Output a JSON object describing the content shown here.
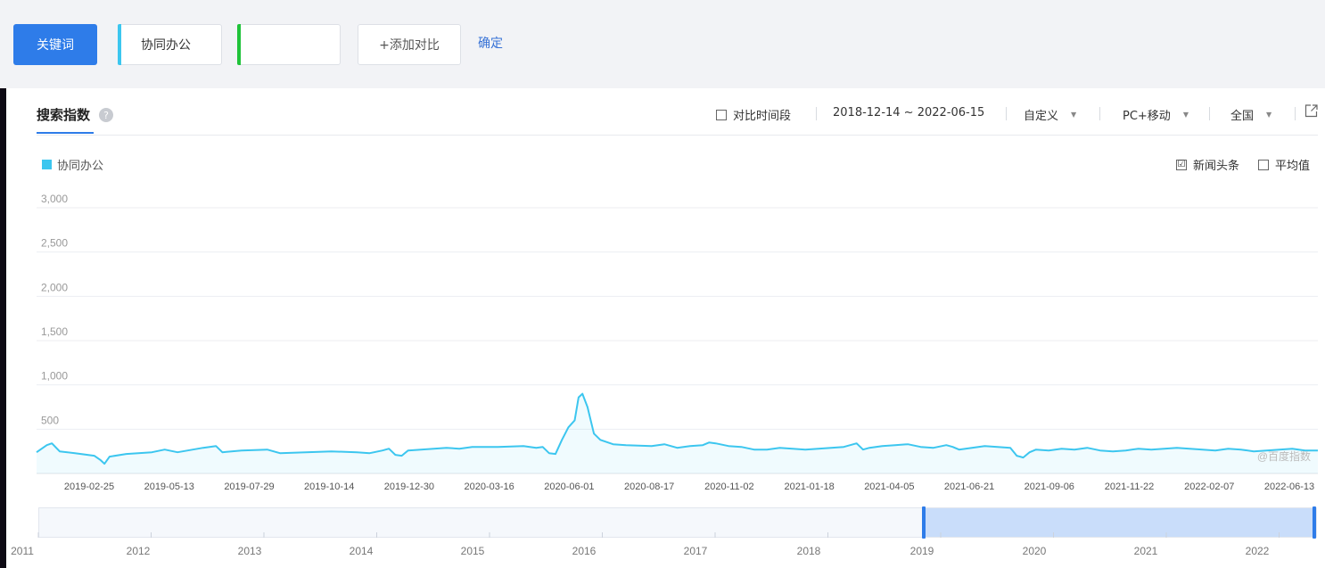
{
  "toolbar": {
    "keyword_button": "关键词",
    "keyword_1": "协同办公",
    "keyword_2": "",
    "add_compare": "+添加对比",
    "confirm": "确定"
  },
  "panel": {
    "tab_title": "搜索指数",
    "help": "?",
    "compare_period": "对比时间段",
    "date_range": "2018-12-14 ~ 2022-06-15",
    "custom": "自定义",
    "device": "PC+移动",
    "region": "全国",
    "export_icon": "export-icon"
  },
  "legend": {
    "series": "协同办公",
    "color": "#3cc6ef"
  },
  "options": {
    "news": "新闻头条",
    "news_checked": "☑",
    "average": "平均值"
  },
  "watermark": "@百度指数",
  "chart_data": {
    "type": "area",
    "y_ticks": [
      "3,000",
      "2,500",
      "2,000",
      "1,500",
      "1,000",
      "500"
    ],
    "y_values": [
      3000,
      2500,
      2000,
      1500,
      1000,
      500
    ],
    "ylim": [
      0,
      3000
    ],
    "x_labels": [
      "2019-02-25",
      "2019-05-13",
      "2019-07-29",
      "2019-10-14",
      "2019-12-30",
      "2020-03-16",
      "2020-06-01",
      "2020-08-17",
      "2020-11-02",
      "2021-01-18",
      "2021-04-05",
      "2021-06-21",
      "2021-09-06",
      "2021-11-22",
      "2022-02-07",
      "2022-06-13"
    ],
    "series": [
      {
        "name": "协同办公",
        "color": "#3cc6ef",
        "values": [
          [
            0,
            240
          ],
          [
            0.008,
            320
          ],
          [
            0.012,
            340
          ],
          [
            0.018,
            250
          ],
          [
            0.03,
            230
          ],
          [
            0.045,
            200
          ],
          [
            0.05,
            150
          ],
          [
            0.053,
            110
          ],
          [
            0.057,
            190
          ],
          [
            0.07,
            220
          ],
          [
            0.09,
            240
          ],
          [
            0.1,
            270
          ],
          [
            0.11,
            240
          ],
          [
            0.13,
            290
          ],
          [
            0.14,
            310
          ],
          [
            0.145,
            240
          ],
          [
            0.16,
            260
          ],
          [
            0.18,
            270
          ],
          [
            0.19,
            230
          ],
          [
            0.21,
            240
          ],
          [
            0.23,
            250
          ],
          [
            0.25,
            240
          ],
          [
            0.26,
            230
          ],
          [
            0.27,
            260
          ],
          [
            0.275,
            280
          ],
          [
            0.28,
            210
          ],
          [
            0.285,
            200
          ],
          [
            0.29,
            260
          ],
          [
            0.3,
            270
          ],
          [
            0.32,
            290
          ],
          [
            0.33,
            280
          ],
          [
            0.34,
            300
          ],
          [
            0.36,
            300
          ],
          [
            0.38,
            310
          ],
          [
            0.39,
            290
          ],
          [
            0.395,
            300
          ],
          [
            0.4,
            230
          ],
          [
            0.405,
            220
          ],
          [
            0.41,
            380
          ],
          [
            0.415,
            520
          ],
          [
            0.42,
            600
          ],
          [
            0.423,
            860
          ],
          [
            0.426,
            900
          ],
          [
            0.43,
            750
          ],
          [
            0.435,
            450
          ],
          [
            0.44,
            380
          ],
          [
            0.45,
            330
          ],
          [
            0.46,
            320
          ],
          [
            0.48,
            310
          ],
          [
            0.49,
            330
          ],
          [
            0.5,
            290
          ],
          [
            0.51,
            310
          ],
          [
            0.52,
            320
          ],
          [
            0.525,
            350
          ],
          [
            0.53,
            340
          ],
          [
            0.54,
            310
          ],
          [
            0.55,
            300
          ],
          [
            0.56,
            270
          ],
          [
            0.57,
            270
          ],
          [
            0.58,
            290
          ],
          [
            0.59,
            280
          ],
          [
            0.6,
            270
          ],
          [
            0.61,
            280
          ],
          [
            0.62,
            290
          ],
          [
            0.63,
            300
          ],
          [
            0.64,
            340
          ],
          [
            0.645,
            270
          ],
          [
            0.65,
            290
          ],
          [
            0.66,
            310
          ],
          [
            0.67,
            320
          ],
          [
            0.68,
            330
          ],
          [
            0.69,
            300
          ],
          [
            0.7,
            290
          ],
          [
            0.71,
            320
          ],
          [
            0.715,
            300
          ],
          [
            0.72,
            270
          ],
          [
            0.73,
            290
          ],
          [
            0.74,
            310
          ],
          [
            0.75,
            300
          ],
          [
            0.76,
            290
          ],
          [
            0.765,
            200
          ],
          [
            0.77,
            180
          ],
          [
            0.775,
            240
          ],
          [
            0.78,
            270
          ],
          [
            0.79,
            260
          ],
          [
            0.8,
            280
          ],
          [
            0.81,
            270
          ],
          [
            0.82,
            290
          ],
          [
            0.83,
            260
          ],
          [
            0.84,
            250
          ],
          [
            0.85,
            260
          ],
          [
            0.86,
            280
          ],
          [
            0.87,
            270
          ],
          [
            0.88,
            280
          ],
          [
            0.89,
            290
          ],
          [
            0.9,
            280
          ],
          [
            0.91,
            270
          ],
          [
            0.92,
            260
          ],
          [
            0.93,
            280
          ],
          [
            0.94,
            270
          ],
          [
            0.95,
            250
          ],
          [
            0.96,
            260
          ],
          [
            0.97,
            270
          ],
          [
            0.98,
            280
          ],
          [
            0.99,
            260
          ],
          [
            1,
            260
          ]
        ]
      }
    ]
  },
  "navigator": {
    "years": [
      "2011",
      "2012",
      "2013",
      "2014",
      "2015",
      "2016",
      "2017",
      "2018",
      "2019",
      "2020",
      "2021",
      "2022"
    ]
  }
}
